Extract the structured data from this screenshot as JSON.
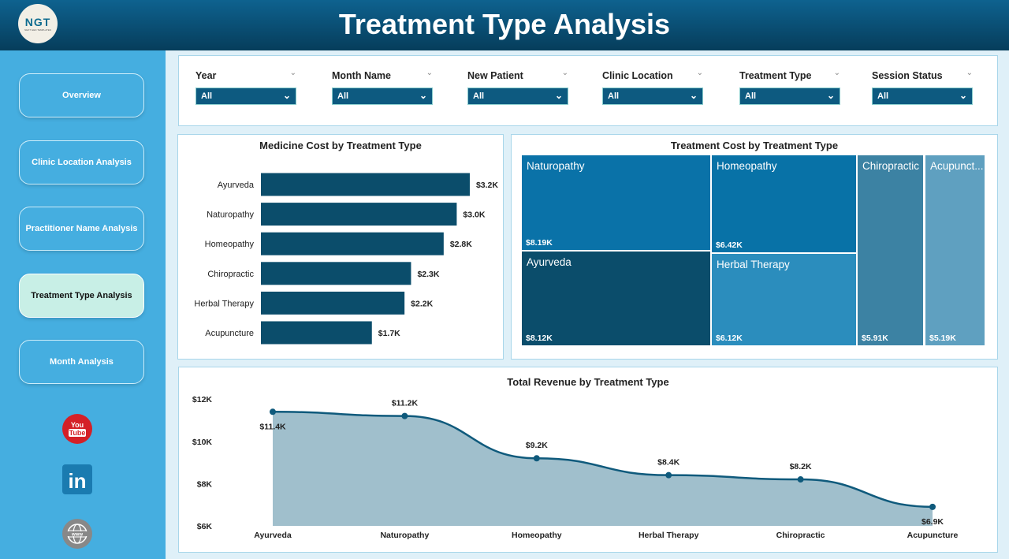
{
  "header": {
    "title": "Treatment Type Analysis",
    "logo_text": "NGT",
    "logo_subtext": "NEXT GEN TEMPLATES"
  },
  "sidebar": {
    "items": [
      {
        "label": "Overview",
        "active": false
      },
      {
        "label": "Clinic Location Analysis",
        "active": false
      },
      {
        "label": "Practitioner Name Analysis",
        "active": false
      },
      {
        "label": "Treatment Type Analysis",
        "active": true
      },
      {
        "label": "Month Analysis",
        "active": false
      }
    ],
    "social": [
      "youtube-icon",
      "linkedin-icon",
      "website-globe-icon"
    ]
  },
  "filters": [
    {
      "label": "Year",
      "value": "All"
    },
    {
      "label": "Month Name",
      "value": "All"
    },
    {
      "label": "New Patient",
      "value": "All"
    },
    {
      "label": "Clinic Location",
      "value": "All"
    },
    {
      "label": "Treatment Type",
      "value": "All"
    },
    {
      "label": "Session Status",
      "value": "All"
    }
  ],
  "colors": {
    "header": "#0a4f74",
    "sidebar": "#45aee0",
    "bar": "#0b4d6b",
    "area_fill": "#a0bfcc",
    "area_line": "#0f5a7c"
  },
  "chart_data": [
    {
      "type": "bar",
      "orientation": "horizontal",
      "title": "Medicine Cost by Treatment Type",
      "categories": [
        "Ayurveda",
        "Naturopathy",
        "Homeopathy",
        "Chiropractic",
        "Herbal Therapy",
        "Acupuncture"
      ],
      "values": [
        3.2,
        3.0,
        2.8,
        2.3,
        2.2,
        1.7
      ],
      "labels": [
        "$3.2K",
        "$3.0K",
        "$2.8K",
        "$2.3K",
        "$2.2K",
        "$1.7K"
      ],
      "unit": "$K"
    },
    {
      "type": "treemap",
      "title": "Treatment Cost by Treatment Type",
      "items": [
        {
          "name": "Naturopathy",
          "value": 8.19,
          "label": "$8.19K",
          "color": "#0a72a8"
        },
        {
          "name": "Ayurveda",
          "value": 8.12,
          "label": "$8.12K",
          "color": "#0b4d6b"
        },
        {
          "name": "Homeopathy",
          "value": 6.42,
          "label": "$6.42K",
          "color": "#0872a7"
        },
        {
          "name": "Herbal Therapy",
          "value": 6.12,
          "label": "$6.12K",
          "color": "#2b8dbd"
        },
        {
          "name": "Chiropractic",
          "value": 5.91,
          "label": "$5.91K",
          "color": "#3c82a3"
        },
        {
          "name": "Acupunct...",
          "value": 5.19,
          "label": "$5.19K",
          "color": "#5fa0c0"
        }
      ]
    },
    {
      "type": "area",
      "title": "Total Revenue by Treatment Type",
      "categories": [
        "Ayurveda",
        "Naturopathy",
        "Homeopathy",
        "Herbal Therapy",
        "Chiropractic",
        "Acupuncture"
      ],
      "values": [
        11.4,
        11.2,
        9.2,
        8.4,
        8.2,
        6.9
      ],
      "labels": [
        "$11.4K",
        "$11.2K",
        "$9.2K",
        "$8.4K",
        "$8.2K",
        "$6.9K"
      ],
      "ylim": [
        6,
        12
      ],
      "yticks": [
        "$6K",
        "$8K",
        "$10K",
        "$12K"
      ],
      "grid": false
    }
  ]
}
